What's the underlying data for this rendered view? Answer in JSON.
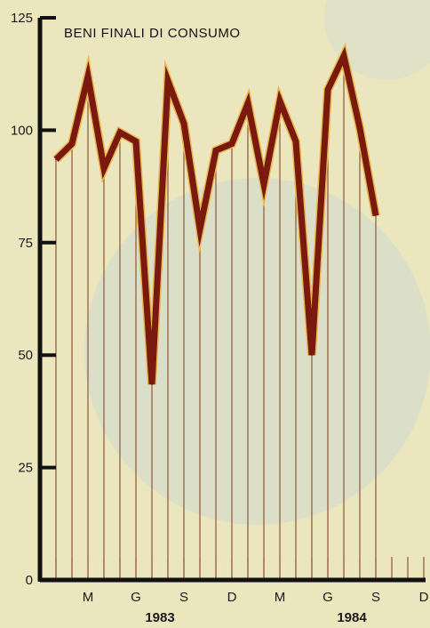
{
  "chart_data": {
    "type": "line",
    "title": "BENI FINALI DI CONSUMO",
    "ylim": [
      0,
      125
    ],
    "yticks": [
      0,
      25,
      50,
      75,
      100,
      125
    ],
    "grid": false,
    "series": [
      {
        "values": [
          93.5,
          97,
          112,
          91.5,
          99.5,
          97.5,
          43.5,
          111,
          101.5,
          78,
          95.5,
          97,
          106,
          88,
          106.5,
          97.5,
          50,
          109,
          116.5,
          100.5,
          81
        ]
      }
    ],
    "month_labels": [
      {
        "idx": 2,
        "label": "M"
      },
      {
        "idx": 5,
        "label": "G"
      },
      {
        "idx": 8,
        "label": "S"
      },
      {
        "idx": 11,
        "label": "D"
      },
      {
        "idx": 14,
        "label": "M"
      },
      {
        "idx": 17,
        "label": "G"
      },
      {
        "idx": 20,
        "label": "S"
      },
      {
        "idx": 23,
        "label": "D"
      }
    ],
    "year_labels": [
      {
        "label": "1983",
        "center_idx": 6.5
      },
      {
        "label": "1984",
        "center_idx": 18.5
      }
    ],
    "colors": {
      "line": "#7a1a0e",
      "line_edge": "#e8b850",
      "axis": "#111111",
      "drop_line": "#8a4a2a",
      "background": "#ece6bf",
      "blob": "#cfd9d0"
    }
  }
}
